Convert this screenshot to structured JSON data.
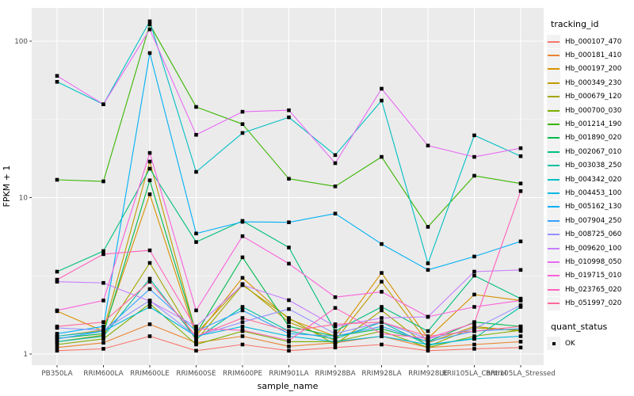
{
  "chart_data": {
    "type": "line",
    "title": "",
    "xlabel": "sample_name",
    "ylabel": "FPKM + 1",
    "y_scale": "log10",
    "y_ticks": [
      1,
      10,
      100
    ],
    "y_minor_ticks": [
      3.1623,
      31.623
    ],
    "ylim": [
      0.85,
      165
    ],
    "grid": "major-and-minor, white on gray panel",
    "legend_position": "right",
    "panel_bg": "#EBEBEB",
    "grid_color": "#FFFFFF",
    "tick_text_color": "#4D4D4D",
    "marker": {
      "shape": "square",
      "color": "#000000",
      "size": 4.6
    },
    "categories": [
      "PB350LA",
      "RRIM600LA",
      "RRIM600LE",
      "RRIM600SE",
      "RRIM600PE",
      "RRIM901LA",
      "RRIM928BA",
      "RRIM928LA",
      "RRIM928LE",
      "RRII105LA_Control",
      "RRII105LA_Stressed"
    ],
    "legend_title": "tracking_id",
    "legend2": {
      "title": "quant_status",
      "items": [
        {
          "label": "OK"
        }
      ]
    },
    "series": [
      {
        "name": "Hb_000107_470",
        "color": "#F8766D",
        "values": [
          1.05,
          1.08,
          1.3,
          1.05,
          1.15,
          1.05,
          1.1,
          1.15,
          1.05,
          1.08,
          1.1
        ]
      },
      {
        "name": "Hb_000181_410",
        "color": "#EA8331",
        "values": [
          1.1,
          1.18,
          1.55,
          1.18,
          1.3,
          1.12,
          1.18,
          1.3,
          1.1,
          1.15,
          1.2
        ]
      },
      {
        "name": "Hb_000197_200",
        "color": "#D89000",
        "values": [
          1.88,
          1.4,
          10.5,
          1.3,
          3.07,
          1.67,
          1.3,
          3.3,
          1.26,
          2.4,
          2.2
        ]
      },
      {
        "name": "Hb_000349_230",
        "color": "#C09B00",
        "values": [
          1.3,
          1.42,
          17.0,
          1.35,
          2.8,
          1.6,
          1.22,
          2.9,
          1.18,
          1.5,
          1.4
        ]
      },
      {
        "name": "Hb_000679_120",
        "color": "#A3A500",
        "values": [
          1.2,
          1.32,
          3.82,
          1.22,
          2.76,
          1.7,
          1.15,
          1.9,
          1.12,
          1.47,
          1.42
        ]
      },
      {
        "name": "Hb_000700_030",
        "color": "#7CAE00",
        "values": [
          1.15,
          1.25,
          2.1,
          1.15,
          1.4,
          1.2,
          1.2,
          1.4,
          1.1,
          1.3,
          1.42
        ]
      },
      {
        "name": "Hb_001214_190",
        "color": "#39B600",
        "values": [
          13.0,
          12.7,
          128,
          38.0,
          29.5,
          13.2,
          11.8,
          18.2,
          6.5,
          13.8,
          12.3
        ]
      },
      {
        "name": "Hb_001890_020",
        "color": "#00BB4E",
        "values": [
          1.26,
          1.35,
          12.9,
          1.35,
          4.15,
          1.5,
          1.3,
          1.45,
          1.2,
          1.6,
          1.5
        ]
      },
      {
        "name": "Hb_002067_010",
        "color": "#00BF7D",
        "values": [
          3.36,
          4.55,
          15.3,
          5.2,
          7.1,
          4.8,
          1.4,
          2.0,
          1.4,
          3.17,
          2.26
        ]
      },
      {
        "name": "Hb_003038_250",
        "color": "#00C1A3",
        "values": [
          1.2,
          1.3,
          3.03,
          1.25,
          2.0,
          1.4,
          1.25,
          1.6,
          1.14,
          1.26,
          2.0
        ]
      },
      {
        "name": "Hb_004342_020",
        "color": "#00BFC4",
        "values": [
          55.0,
          39.5,
          134,
          14.6,
          25.9,
          32.6,
          18.7,
          41.7,
          3.8,
          25.0,
          18.4
        ]
      },
      {
        "name": "Hb_004453_100",
        "color": "#00BAE0",
        "values": [
          1.3,
          1.4,
          2.0,
          1.3,
          1.5,
          1.3,
          1.2,
          1.3,
          1.15,
          1.25,
          1.3
        ]
      },
      {
        "name": "Hb_005162_130",
        "color": "#00B0F6",
        "values": [
          1.35,
          1.5,
          84.0,
          5.9,
          7.0,
          6.95,
          7.9,
          5.05,
          3.45,
          4.2,
          5.25
        ]
      },
      {
        "name": "Hb_007904_250",
        "color": "#35A2FF",
        "values": [
          1.25,
          1.4,
          2.6,
          1.4,
          1.9,
          1.35,
          1.3,
          1.5,
          1.2,
          1.4,
          1.45
        ]
      },
      {
        "name": "Hb_008725_060",
        "color": "#9590FF",
        "values": [
          1.47,
          1.42,
          2.2,
          1.3,
          1.6,
          1.94,
          1.35,
          1.6,
          1.25,
          1.45,
          2.05
        ]
      },
      {
        "name": "Hb_009620_100",
        "color": "#C77CFF",
        "values": [
          2.9,
          2.85,
          2.18,
          1.5,
          2.76,
          2.21,
          1.5,
          1.7,
          1.73,
          3.36,
          3.45
        ]
      },
      {
        "name": "Hb_010998_050",
        "color": "#E76BF3",
        "values": [
          60.0,
          39.5,
          119,
          25.2,
          35.4,
          36.2,
          16.6,
          49.7,
          21.5,
          18.2,
          20.7
        ]
      },
      {
        "name": "Hb_019715_010",
        "color": "#FA62DB",
        "values": [
          1.9,
          2.2,
          19.3,
          1.9,
          5.67,
          3.78,
          2.31,
          2.5,
          1.73,
          2.0,
          2.2
        ]
      },
      {
        "name": "Hb_023765_020",
        "color": "#FF62BC",
        "values": [
          2.99,
          4.35,
          4.6,
          1.45,
          1.42,
          1.22,
          1.97,
          1.35,
          1.26,
          1.58,
          11.0
        ]
      },
      {
        "name": "Hb_051997_020",
        "color": "#FF6A98",
        "values": [
          1.5,
          1.6,
          2.9,
          1.3,
          1.7,
          1.4,
          1.55,
          1.6,
          1.3,
          1.4,
          1.5
        ]
      }
    ]
  }
}
